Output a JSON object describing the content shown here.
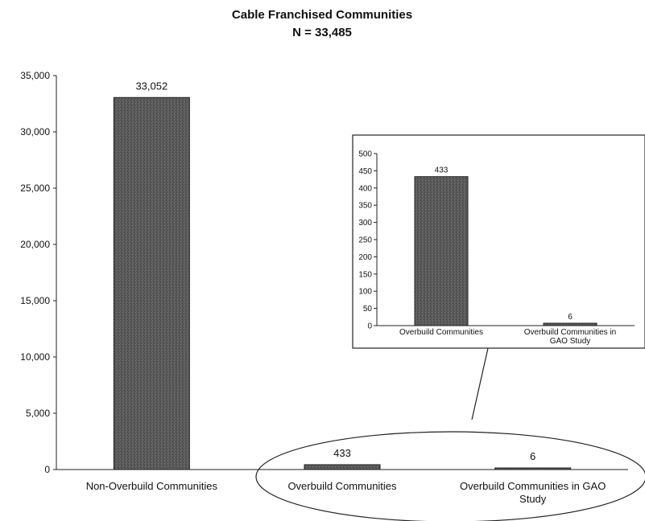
{
  "chart_data": [
    {
      "type": "bar",
      "title": "Cable Franchised Communities",
      "subtitle": "N = 33,485",
      "categories": [
        "Non-Overbuild Communities",
        "Overbuild Communities",
        "Overbuild Communities in GAO Study"
      ],
      "category_lines": [
        [
          "Non-Overbuild Communities"
        ],
        [
          "Overbuild Communities"
        ],
        [
          "Overbuild Communities in GAO",
          "Study"
        ]
      ],
      "values": [
        33052,
        433,
        6
      ],
      "data_labels": [
        "33,052",
        "433",
        "6"
      ],
      "ylim": [
        0,
        35000
      ],
      "yticks": [
        0,
        5000,
        10000,
        15000,
        20000,
        25000,
        30000,
        35000
      ],
      "ytick_labels": [
        "0",
        "5,000",
        "10,000",
        "15,000",
        "20,000",
        "25,000",
        "30,000",
        "35,000"
      ],
      "xlabel": "",
      "ylabel": "",
      "grid": false,
      "bar_color": "#555555"
    },
    {
      "type": "bar",
      "role": "inset",
      "categories": [
        "Overbuild Communities",
        "Overbuild Communities in GAO Study"
      ],
      "category_lines": [
        [
          "Overbuild Communities"
        ],
        [
          "Overbuild Communities in",
          "GAO Study"
        ]
      ],
      "values": [
        433,
        6
      ],
      "data_labels": [
        "433",
        "6"
      ],
      "ylim": [
        0,
        500
      ],
      "yticks": [
        0,
        50,
        100,
        150,
        200,
        250,
        300,
        350,
        400,
        450,
        500
      ],
      "ytick_labels": [
        "0",
        "50",
        "100",
        "150",
        "200",
        "250",
        "300",
        "350",
        "400",
        "450",
        "500"
      ],
      "grid": false,
      "bar_color": "#555555"
    }
  ]
}
